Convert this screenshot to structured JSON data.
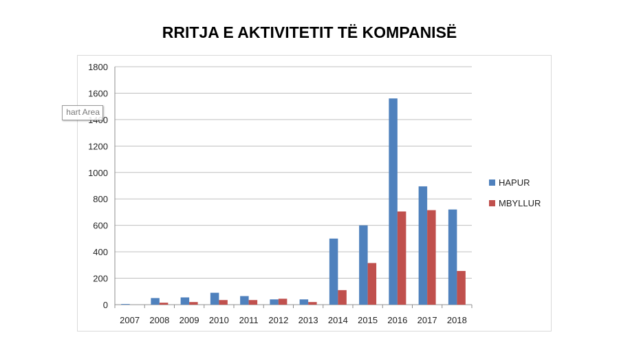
{
  "chart_data": {
    "type": "bar",
    "title": "RRITJA E AKTIVITETIT TË KOMPANISË",
    "categories": [
      "2007",
      "2008",
      "2009",
      "2010",
      "2011",
      "2012",
      "2013",
      "2014",
      "2015",
      "2016",
      "2017",
      "2018"
    ],
    "series": [
      {
        "name": "HAPUR",
        "color": "#4f81bd",
        "values": [
          5,
          50,
          55,
          90,
          65,
          40,
          40,
          500,
          600,
          1560,
          895,
          720
        ]
      },
      {
        "name": "MBYLLUR",
        "color": "#c0504d",
        "values": [
          0,
          15,
          20,
          35,
          35,
          45,
          20,
          110,
          315,
          705,
          715,
          255
        ]
      }
    ],
    "ylim": [
      0,
      1800
    ],
    "yticks": [
      0,
      200,
      400,
      600,
      800,
      1000,
      1200,
      1400,
      1600,
      1800
    ],
    "grid": true,
    "legend": "right"
  },
  "tooltip_text": "hart Area"
}
